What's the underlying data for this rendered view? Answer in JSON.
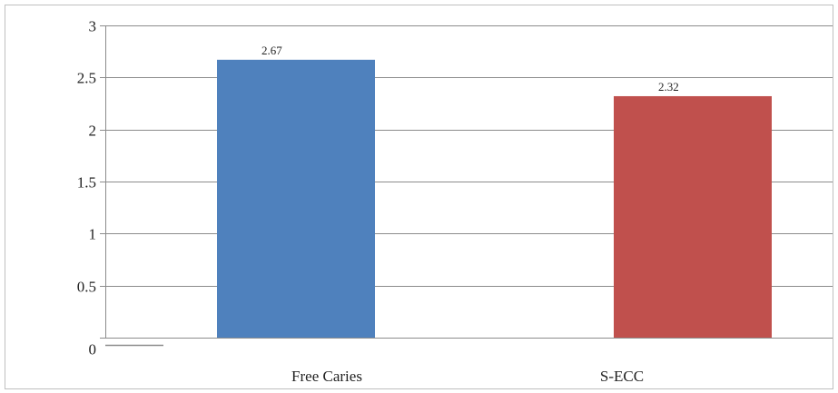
{
  "chart_data": {
    "type": "bar",
    "categories": [
      "Free Caries",
      "S-ECC"
    ],
    "values": [
      2.67,
      2.32
    ],
    "data_labels": [
      "2.67",
      "2.32"
    ],
    "colors": [
      "#4F81BD",
      "#C0504D"
    ],
    "title": "",
    "xlabel": "",
    "ylabel": "",
    "ylim": [
      0,
      3
    ],
    "yticks": [
      0,
      0.5,
      1,
      1.5,
      2,
      2.5,
      3
    ],
    "ytick_labels": [
      "0",
      "0.5",
      "1",
      "1.5",
      "2",
      "2.5",
      "3"
    ],
    "grid": true,
    "legend": "none"
  }
}
